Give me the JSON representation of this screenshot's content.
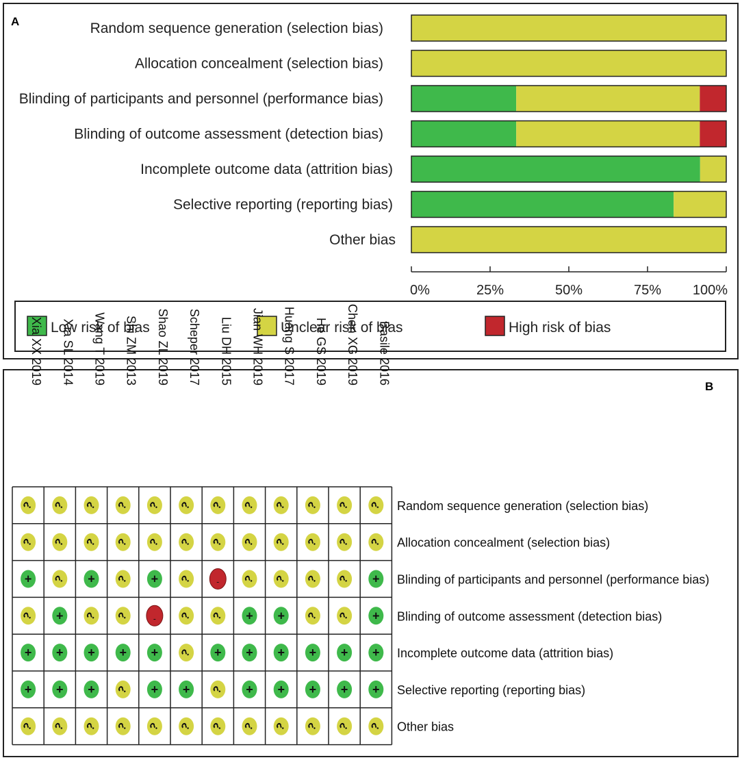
{
  "colors": {
    "low": "#3fb94b",
    "unclear": "#d4d444",
    "high": "#c1272d",
    "border": "#222222"
  },
  "panel_a": {
    "label": "A"
  },
  "panel_b": {
    "label": "B"
  },
  "legend": [
    {
      "key": "low",
      "label": "Low risk of bias"
    },
    {
      "key": "unclear",
      "label": "Unclear risk of bias"
    },
    {
      "key": "high",
      "label": "High risk of bias"
    }
  ],
  "symbols": {
    "low": "+",
    "unclear": "?",
    "high": "-"
  },
  "chart_data": [
    {
      "type": "bar",
      "orientation": "horizontal-stacked-percent",
      "title": "",
      "xlabel": "",
      "ylabel": "",
      "xlim": [
        0,
        100
      ],
      "x_ticks": [
        "0%",
        "25%",
        "50%",
        "75%",
        "100%"
      ],
      "categories": [
        "Random sequence generation (selection bias)",
        "Allocation concealment (selection bias)",
        "Blinding of participants and personnel (performance bias)",
        "Blinding of outcome assessment (detection bias)",
        "Incomplete outcome data (attrition bias)",
        "Selective reporting (reporting bias)",
        "Other bias"
      ],
      "series": [
        {
          "name": "Low risk of bias",
          "key": "low",
          "values": [
            0,
            0,
            33.3,
            33.3,
            91.7,
            83.3,
            0
          ]
        },
        {
          "name": "Unclear risk of bias",
          "key": "unclear",
          "values": [
            100,
            100,
            58.3,
            58.3,
            8.3,
            16.7,
            100
          ]
        },
        {
          "name": "High risk of bias",
          "key": "high",
          "values": [
            0,
            0,
            8.3,
            8.3,
            0,
            0,
            0
          ]
        }
      ],
      "legend": "bottom"
    },
    {
      "type": "table",
      "title": "",
      "studies": [
        "Xia XX 2019",
        "Xia SL 2014",
        "Wang T 2019",
        "Shi ZM 2013",
        "Shao ZL 2019",
        "Scheper 2017",
        "Liu DH 2015",
        "Jian WH 2019",
        "Huang S 2017",
        "He GS 2019",
        "Chen XG 2019",
        "Basile 2016"
      ],
      "domains": [
        "Random sequence generation (selection bias)",
        "Allocation concealment (selection bias)",
        "Blinding of participants and personnel (performance bias)",
        "Blinding of outcome assessment (detection bias)",
        "Incomplete outcome data (attrition bias)",
        "Selective reporting (reporting bias)",
        "Other bias"
      ],
      "judgements": [
        [
          "unclear",
          "unclear",
          "unclear",
          "unclear",
          "unclear",
          "unclear",
          "unclear",
          "unclear",
          "unclear",
          "unclear",
          "unclear",
          "unclear"
        ],
        [
          "unclear",
          "unclear",
          "unclear",
          "unclear",
          "unclear",
          "unclear",
          "unclear",
          "unclear",
          "unclear",
          "unclear",
          "unclear",
          "unclear"
        ],
        [
          "low",
          "unclear",
          "low",
          "unclear",
          "low",
          "unclear",
          "high",
          "unclear",
          "unclear",
          "unclear",
          "unclear",
          "low"
        ],
        [
          "unclear",
          "low",
          "unclear",
          "unclear",
          "high",
          "unclear",
          "unclear",
          "low",
          "low",
          "unclear",
          "unclear",
          "low"
        ],
        [
          "low",
          "low",
          "low",
          "low",
          "low",
          "unclear",
          "low",
          "low",
          "low",
          "low",
          "low",
          "low"
        ],
        [
          "low",
          "low",
          "low",
          "unclear",
          "low",
          "low",
          "unclear",
          "low",
          "low",
          "low",
          "low",
          "low"
        ],
        [
          "unclear",
          "unclear",
          "unclear",
          "unclear",
          "unclear",
          "unclear",
          "unclear",
          "unclear",
          "unclear",
          "unclear",
          "unclear",
          "unclear"
        ]
      ]
    }
  ]
}
